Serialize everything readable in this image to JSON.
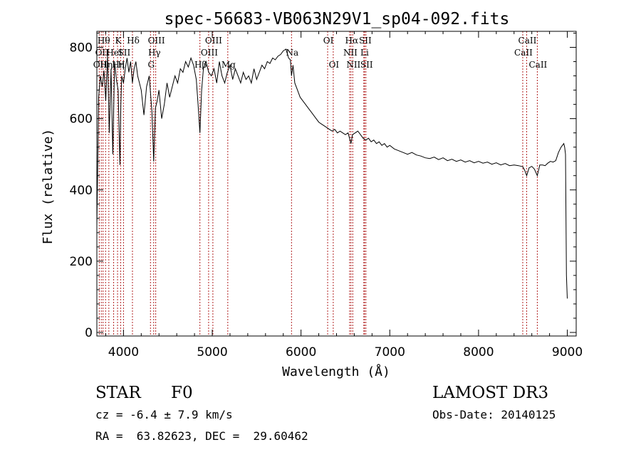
{
  "chart_data": {
    "type": "line",
    "title": "spec-56683-VB063N29V1_sp04-092.fits",
    "xlabel": "Wavelength (Å)",
    "ylabel": "Flux (relative)",
    "xlim": [
      3700,
      9100
    ],
    "ylim": [
      -10,
      845
    ],
    "xticks": [
      4000,
      5000,
      6000,
      7000,
      8000,
      9000
    ],
    "yticks": [
      0,
      200,
      400,
      600,
      800
    ],
    "grid": false,
    "spectrum": {
      "name": "flux",
      "x": [
        3700,
        3720,
        3740,
        3760,
        3780,
        3800,
        3820,
        3840,
        3860,
        3880,
        3900,
        3920,
        3940,
        3960,
        3970,
        3980,
        4000,
        4020,
        4040,
        4060,
        4080,
        4100,
        4120,
        4140,
        4160,
        4180,
        4200,
        4230,
        4260,
        4290,
        4320,
        4340,
        4360,
        4380,
        4400,
        4430,
        4460,
        4490,
        4520,
        4550,
        4580,
        4610,
        4640,
        4670,
        4700,
        4730,
        4760,
        4790,
        4820,
        4840,
        4861,
        4880,
        4900,
        4930,
        4960,
        4990,
        5020,
        5050,
        5080,
        5110,
        5140,
        5170,
        5200,
        5230,
        5260,
        5290,
        5320,
        5350,
        5380,
        5410,
        5440,
        5470,
        5500,
        5530,
        5560,
        5590,
        5620,
        5650,
        5680,
        5710,
        5740,
        5770,
        5800,
        5830,
        5860,
        5880,
        5893,
        5910,
        5930,
        5960,
        5990,
        6020,
        6050,
        6080,
        6110,
        6140,
        6170,
        6200,
        6230,
        6260,
        6290,
        6320,
        6350,
        6380,
        6410,
        6440,
        6470,
        6500,
        6530,
        6563,
        6580,
        6610,
        6640,
        6670,
        6700,
        6730,
        6760,
        6790,
        6820,
        6850,
        6880,
        6910,
        6940,
        6970,
        7000,
        7050,
        7100,
        7150,
        7200,
        7250,
        7300,
        7350,
        7400,
        7450,
        7500,
        7550,
        7600,
        7650,
        7700,
        7750,
        7800,
        7850,
        7900,
        7950,
        8000,
        8050,
        8100,
        8150,
        8200,
        8250,
        8300,
        8350,
        8400,
        8450,
        8498,
        8520,
        8542,
        8570,
        8600,
        8630,
        8662,
        8690,
        8720,
        8750,
        8780,
        8810,
        8840,
        8870,
        8900,
        8930,
        8960,
        8970,
        8980,
        8990,
        9000
      ],
      "y": [
        300,
        660,
        720,
        690,
        735,
        650,
        780,
        560,
        740,
        500,
        760,
        710,
        680,
        470,
        640,
        720,
        700,
        740,
        770,
        730,
        760,
        700,
        740,
        760,
        720,
        700,
        680,
        610,
        690,
        720,
        620,
        480,
        630,
        650,
        680,
        600,
        640,
        700,
        660,
        690,
        720,
        700,
        740,
        730,
        760,
        745,
        770,
        750,
        710,
        640,
        560,
        680,
        740,
        760,
        730,
        720,
        740,
        700,
        760,
        720,
        700,
        730,
        750,
        710,
        740,
        720,
        700,
        730,
        710,
        720,
        700,
        740,
        710,
        730,
        750,
        740,
        760,
        755,
        770,
        765,
        775,
        780,
        790,
        795,
        770,
        765,
        720,
        750,
        700,
        680,
        660,
        650,
        640,
        630,
        620,
        610,
        600,
        590,
        585,
        580,
        575,
        570,
        565,
        570,
        560,
        565,
        560,
        555,
        560,
        530,
        555,
        560,
        565,
        555,
        545,
        540,
        545,
        535,
        540,
        530,
        535,
        525,
        530,
        520,
        525,
        515,
        510,
        505,
        500,
        505,
        498,
        495,
        490,
        488,
        492,
        485,
        490,
        482,
        486,
        480,
        484,
        478,
        482,
        476,
        480,
        475,
        478,
        472,
        476,
        470,
        474,
        468,
        470,
        468,
        465,
        455,
        440,
        462,
        466,
        458,
        440,
        470,
        470,
        468,
        475,
        480,
        478,
        482,
        505,
        520,
        530,
        520,
        500,
        160,
        95
      ]
    },
    "lines": [
      {
        "wl": 3727,
        "label": "OII",
        "row": 2,
        "dx": 0
      },
      {
        "wl": 3750,
        "label": "OII",
        "row": 1,
        "dx": 0
      },
      {
        "wl": 3770,
        "label": "Hθ",
        "row": 0,
        "dx": 0
      },
      {
        "wl": 3798,
        "label": "Hη",
        "row": 2,
        "dx": 0
      },
      {
        "wl": 3835,
        "label": "Hη",
        "row": 2,
        "dx": 12
      },
      {
        "wl": 3889,
        "label": "HeI",
        "row": 1,
        "dx": 0
      },
      {
        "wl": 3933,
        "label": "K",
        "row": 0,
        "dx": 0
      },
      {
        "wl": 3968,
        "label": "H",
        "row": 2,
        "dx": 0
      },
      {
        "wl": 4000,
        "label": "SII",
        "row": 1,
        "dx": 0
      },
      {
        "wl": 4101,
        "label": "Hδ",
        "row": 0,
        "dx": 0
      },
      {
        "wl": 4304,
        "label": "G",
        "row": 2,
        "dx": 0
      },
      {
        "wl": 4340,
        "label": "Hγ",
        "row": 1,
        "dx": 0
      },
      {
        "wl": 4363,
        "label": "OIII",
        "row": 0,
        "dx": 0
      },
      {
        "wl": 4861,
        "label": "Hβ",
        "row": 2,
        "dx": 0
      },
      {
        "wl": 4959,
        "label": "OIII",
        "row": 1,
        "dx": 0
      },
      {
        "wl": 5007,
        "label": "OIII",
        "row": 0,
        "dx": 0
      },
      {
        "wl": 5175,
        "label": "Mg",
        "row": 2,
        "dx": 0
      },
      {
        "wl": 5893,
        "label": "Na",
        "row": 1,
        "dx": 0
      },
      {
        "wl": 6300,
        "label": "OI",
        "row": 0,
        "dx": 0
      },
      {
        "wl": 6363,
        "label": "OI",
        "row": 2,
        "dx": 0
      },
      {
        "wl": 6548,
        "label": "NII",
        "row": 1,
        "dx": 0
      },
      {
        "wl": 6563,
        "label": "Hα",
        "row": 0,
        "dx": 0
      },
      {
        "wl": 6583,
        "label": "NII",
        "row": 2,
        "dx": 0
      },
      {
        "wl": 6708,
        "label": "Li",
        "row": 1,
        "dx": 0
      },
      {
        "wl": 6716,
        "label": "SII",
        "row": 0,
        "dx": 0
      },
      {
        "wl": 6731,
        "label": "SII",
        "row": 2,
        "dx": 0
      },
      {
        "wl": 8498,
        "label": "CaII",
        "row": 1,
        "dx": 0
      },
      {
        "wl": 8542,
        "label": "CaII",
        "row": 0,
        "dx": 0
      },
      {
        "wl": 8662,
        "label": "CaII",
        "row": 2,
        "dx": 0
      }
    ]
  },
  "info": {
    "class_label": "STAR",
    "subclass_label": "F0",
    "survey": "LAMOST DR3",
    "redshift": "cz = -6.4 ± 7.9 km/s",
    "obs_date": "Obs-Date: 20140125",
    "coords": "RA =  63.82623, DEC =  29.60462"
  },
  "colors": {
    "axis": "#000000",
    "spectrum": "#000000",
    "line_marker": "#b22222",
    "background": "#ffffff"
  }
}
